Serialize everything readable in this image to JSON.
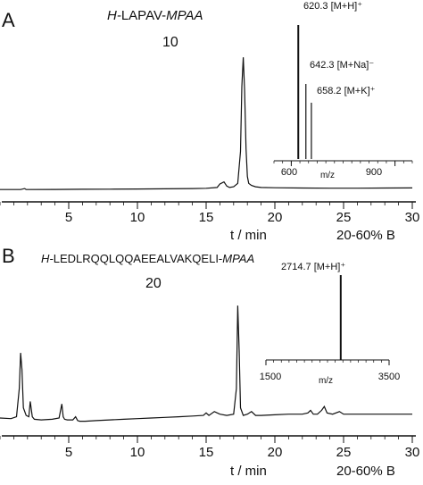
{
  "chart_data": [
    {
      "type": "line",
      "panel_label": "A",
      "compound_prefix": "H-",
      "compound_sequence": "LAPAV-",
      "compound_suffix": "MPAA",
      "compound_number": "10",
      "xlabel": "t / min",
      "gradient_label": "20-60% B",
      "xlim": [
        0,
        30
      ],
      "ylim": [
        0,
        1
      ],
      "x_ticks": [
        5,
        10,
        15,
        20,
        25,
        30
      ],
      "series": [
        {
          "x": [
            0,
            1.5,
            1.8,
            1.9,
            2,
            4,
            6,
            8,
            10,
            12,
            14,
            15,
            15.8,
            16.0,
            16.3,
            16.5,
            16.7,
            17.0,
            17.3,
            17.5,
            17.6,
            17.7,
            17.8,
            17.9,
            18.0,
            18.1,
            18.3,
            18.6,
            19,
            20,
            22,
            24,
            26,
            28,
            30
          ],
          "y": [
            0.005,
            0.005,
            0.012,
            0.005,
            0.005,
            0.006,
            0.007,
            0.008,
            0.009,
            0.01,
            0.012,
            0.014,
            0.02,
            0.045,
            0.06,
            0.03,
            0.02,
            0.025,
            0.05,
            0.28,
            0.75,
            0.96,
            0.72,
            0.3,
            0.1,
            0.05,
            0.035,
            0.025,
            0.02,
            0.018,
            0.016,
            0.015,
            0.015,
            0.016,
            0.017
          ]
        }
      ],
      "inset": {
        "xlabel": "m/z",
        "xlim": [
          550,
          950
        ],
        "x_ticks": [
          600,
          900
        ],
        "peaks": [
          {
            "mz": 620.3,
            "rel": 1.0,
            "label": "620.3 [M+H]⁺"
          },
          {
            "mz": 642.3,
            "rel": 0.56,
            "label": "642.3 [M+Na]⁻"
          },
          {
            "mz": 658.2,
            "rel": 0.42,
            "label": "658.2 [M+K]⁺"
          }
        ]
      }
    },
    {
      "type": "line",
      "panel_label": "B",
      "compound_prefix": "H-",
      "compound_sequence": "LEDLRQQLQQAEEALVAKQELI-",
      "compound_suffix": "MPAA",
      "compound_number": "20",
      "xlabel": "t / min",
      "gradient_label": "20-60% B",
      "xlim": [
        0,
        30
      ],
      "ylim": [
        0,
        1
      ],
      "x_ticks": [
        5,
        10,
        15,
        20,
        25,
        30
      ],
      "series": [
        {
          "x": [
            0,
            0.8,
            1.2,
            1.4,
            1.5,
            1.6,
            1.7,
            1.9,
            2.1,
            2.2,
            2.35,
            2.5,
            3.0,
            3.8,
            4.3,
            4.5,
            4.6,
            4.7,
            4.9,
            5.3,
            5.5,
            5.65,
            5.8,
            6.2,
            7.0,
            8.0,
            9.0,
            10.0,
            11.0,
            12.0,
            13.0,
            14.0,
            14.8,
            15.0,
            15.2,
            15.6,
            16.0,
            16.5,
            17.0,
            17.2,
            17.3,
            17.4,
            17.5,
            17.7,
            18.0,
            18.3,
            18.6,
            19.0,
            20.0,
            21.0,
            22.0,
            22.4,
            22.6,
            22.8,
            23.1,
            23.4,
            23.6,
            23.8,
            24.2,
            24.7,
            25.0,
            25.5,
            26.5,
            27.5,
            28.5,
            29.5,
            30.0
          ],
          "y": [
            0.07,
            0.065,
            0.08,
            0.3,
            0.58,
            0.45,
            0.15,
            0.09,
            0.08,
            0.2,
            0.08,
            0.06,
            0.055,
            0.06,
            0.07,
            0.18,
            0.08,
            0.06,
            0.055,
            0.055,
            0.08,
            0.05,
            0.045,
            0.045,
            0.05,
            0.055,
            0.06,
            0.065,
            0.07,
            0.075,
            0.08,
            0.085,
            0.09,
            0.11,
            0.09,
            0.12,
            0.1,
            0.09,
            0.1,
            0.3,
            0.95,
            0.6,
            0.15,
            0.09,
            0.1,
            0.12,
            0.09,
            0.09,
            0.095,
            0.1,
            0.1,
            0.11,
            0.13,
            0.1,
            0.1,
            0.13,
            0.16,
            0.11,
            0.1,
            0.12,
            0.1,
            0.1,
            0.1,
            0.1,
            0.1,
            0.1,
            0.1
          ]
        }
      ],
      "inset": {
        "xlabel": "m/z",
        "xlim": [
          1500,
          3500
        ],
        "x_ticks": [
          1500,
          3500
        ],
        "peaks": [
          {
            "mz": 2714.7,
            "rel": 1.0,
            "label": "2714.7 [M+H]⁺"
          }
        ]
      }
    }
  ]
}
